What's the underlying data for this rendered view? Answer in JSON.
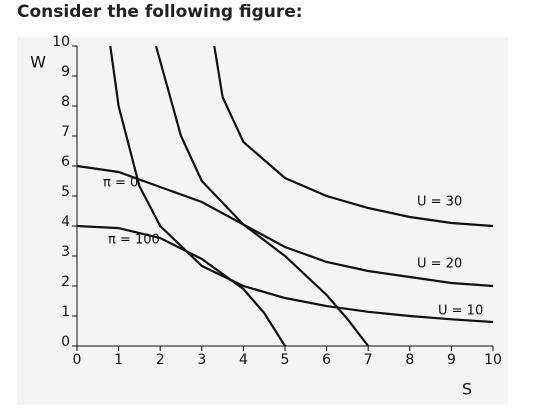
{
  "heading": "Consider the following figure:",
  "chart_data": {
    "type": "line",
    "x_label": "S",
    "y_label": "W",
    "xlim": [
      0,
      10
    ],
    "ylim": [
      0,
      10
    ],
    "xticks": [
      0,
      1,
      2,
      3,
      4,
      5,
      6,
      7,
      8,
      9,
      10
    ],
    "yticks": [
      0,
      1,
      2,
      3,
      4,
      5,
      6,
      7,
      8,
      9,
      10
    ],
    "grid": false,
    "series": [
      {
        "name": "U = 30",
        "color": "#111111",
        "x": [
          3.3,
          3.5,
          4,
          5,
          6,
          7,
          8,
          9,
          10
        ],
        "values": [
          10,
          8.3,
          6.8,
          5.6,
          5.0,
          4.6,
          4.3,
          4.1,
          4.0
        ]
      },
      {
        "name": "U = 20",
        "color": "#111111",
        "x": [
          1.9,
          2.5,
          3,
          4,
          5,
          6,
          7,
          8,
          9,
          10
        ],
        "values": [
          10,
          7,
          5.5,
          4.05,
          3.3,
          2.8,
          2.5,
          2.3,
          2.1,
          2.0
        ]
      },
      {
        "name": "U = 10",
        "color": "#111111",
        "x": [
          0.8,
          1,
          1.5,
          2,
          3,
          4,
          5,
          6,
          7,
          8,
          9,
          10
        ],
        "values": [
          10,
          8,
          5.33,
          4,
          2.67,
          2,
          1.6,
          1.33,
          1.14,
          1,
          0.89,
          0.8
        ]
      },
      {
        "name": "π = 0",
        "color": "#111111",
        "x": [
          0,
          1,
          2,
          3,
          4,
          5,
          6,
          6.5,
          7
        ],
        "values": [
          6,
          5.8,
          5.3,
          4.8,
          4.05,
          3.0,
          1.7,
          0.9,
          0
        ]
      },
      {
        "name": "π = 100",
        "color": "#111111",
        "x": [
          0,
          1,
          2,
          3,
          4,
          4.5,
          5
        ],
        "values": [
          4,
          3.93,
          3.6,
          2.9,
          1.9,
          1.1,
          0
        ]
      }
    ]
  }
}
